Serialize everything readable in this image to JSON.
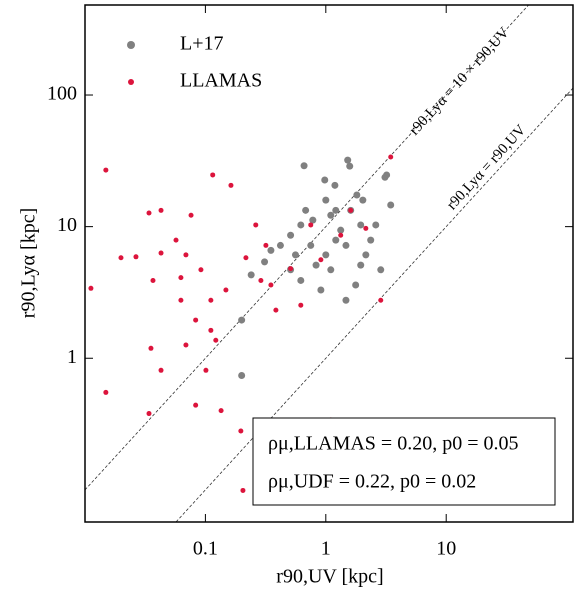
{
  "chart_data": {
    "type": "scatter",
    "x_label": "r90,UV [kpc]",
    "y_label": "r90,Lyα [kpc]",
    "log_x": true,
    "log_y": true,
    "xlim": [
      0.01,
      113
    ],
    "ylim": [
      0.057,
      483
    ],
    "xticks": [
      0.1,
      1,
      10
    ],
    "yticks": [
      1,
      10,
      100
    ],
    "legend_position": "upper left",
    "series": [
      {
        "name": "L+17",
        "color": "#808080",
        "x": [
          0.66,
          1.52,
          1.58,
          3.2,
          3.1,
          0.98,
          1.19,
          1.81,
          2.03,
          1.61,
          1.1,
          0.78,
          0.62,
          0.51,
          0.42,
          0.35,
          0.31,
          0.24,
          0.2,
          0.2,
          1.33,
          1.95,
          2.6,
          1.47,
          1,
          0.83,
          1.1,
          1.95,
          2.86,
          1.77,
          1.47,
          0.91,
          0.62,
          0.51,
          0.56,
          1.21,
          0.75,
          2.36,
          2.15,
          0.68,
          1,
          3.46,
          1.21
        ],
        "values": [
          29,
          32,
          28.8,
          24.7,
          23.7,
          22.6,
          20.6,
          17.4,
          15.9,
          13.3,
          12.2,
          11.2,
          10.3,
          8.6,
          7.2,
          6.6,
          5.4,
          4.3,
          1.95,
          0.74,
          9.4,
          10.3,
          10.3,
          7.2,
          6.1,
          5.1,
          4.7,
          5.1,
          4.7,
          3.6,
          2.76,
          3.3,
          3.9,
          4.7,
          6.1,
          7.9,
          7.2,
          7.9,
          6.1,
          13.3,
          15.9,
          14.6,
          13.3
        ]
      },
      {
        "name": "LLAMAS",
        "color": "#dc143c",
        "x": [
          0.0149,
          0.0428,
          0.034,
          0.163,
          0.115,
          0.076,
          0.057,
          0.0428,
          0.0265,
          0.0199,
          0.0112,
          0.0367,
          0.0626,
          0.0918,
          0.111,
          0.148,
          0.217,
          0.318,
          0.35,
          0.111,
          0.083,
          0.0626,
          0.0353,
          0.0428,
          0.0689,
          0.122,
          0.101,
          0.083,
          0.135,
          0.197,
          0.466,
          0.62,
          1.1,
          0.205,
          0.034,
          0.0149,
          0.385,
          0.62,
          0.91,
          1.33,
          1.61,
          2.15,
          0.75,
          0.51,
          2.86,
          3.46,
          0.262,
          0.289,
          0.0689
        ],
        "values": [
          26.9,
          13.3,
          12.7,
          20.6,
          24.7,
          12.2,
          7.9,
          6.3,
          5.9,
          5.8,
          3.4,
          3.9,
          4.1,
          4.7,
          2.76,
          3.3,
          5.8,
          7.2,
          3.6,
          1.63,
          1.95,
          2.76,
          1.19,
          0.81,
          1.26,
          1.37,
          0.81,
          0.44,
          0.4,
          0.28,
          0.2,
          0.28,
          0.34,
          0.099,
          0.38,
          0.55,
          2.32,
          2.53,
          5.6,
          8.6,
          13.3,
          9.7,
          10.3,
          4.8,
          2.76,
          33.8,
          10.3,
          3.9,
          6.1
        ]
      }
    ],
    "reference_lines": [
      {
        "slope": 10,
        "label": "r90,Lyα = 10 × r90,UV"
      },
      {
        "slope": 1,
        "label": "r90,Lyα = r90,UV"
      }
    ],
    "annotations": [
      "ρμ,LLAMAS = 0.20, p0 = 0.05",
      "ρμ,UDF = 0.22, p0 = 0.02"
    ]
  }
}
